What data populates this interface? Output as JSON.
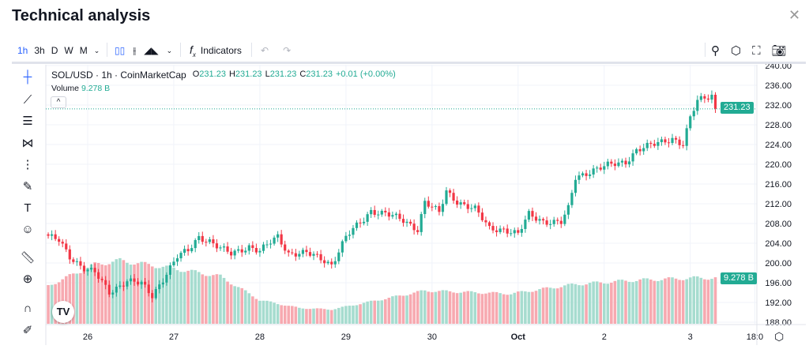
{
  "title": "Technical analysis",
  "toolbar": {
    "intervals": [
      "1h",
      "3h",
      "D",
      "W",
      "M"
    ],
    "active_interval": "1h",
    "indicators": "Indicators"
  },
  "legend": {
    "symbol": "SOL/USD · 1h · CoinMarketCap",
    "o_label": "O",
    "o": "231.23",
    "h_label": "H",
    "h": "231.23",
    "l_label": "L",
    "l": "231.23",
    "c_label": "C",
    "c": "231.23",
    "change": "+0.01 (+0.00%)",
    "volume_label": "Volume",
    "volume": "9.278 B"
  },
  "logo": "TV",
  "colors": {
    "up": "#22ab94",
    "down": "#f23645",
    "up_vol": "#a6dccf",
    "down_vol": "#f7a9b0",
    "accent": "#2962ff"
  },
  "chart_data": {
    "type": "candlestick",
    "title": "SOL/USD · 1h · CoinMarketCap",
    "price_label": "231.23",
    "volume_label": "9.278 B",
    "ylim": [
      188,
      240
    ],
    "y_ticks": [
      "188.00",
      "192.00",
      "196.00",
      "200.00",
      "204.00",
      "208.00",
      "212.00",
      "216.00",
      "220.00",
      "224.00",
      "228.00",
      "232.00",
      "236.00",
      "240.00"
    ],
    "x_ticks": [
      {
        "label": "26",
        "hour": 0
      },
      {
        "label": "27",
        "hour": 24
      },
      {
        "label": "28",
        "hour": 48
      },
      {
        "label": "29",
        "hour": 72
      },
      {
        "label": "30",
        "hour": 96
      },
      {
        "label": "Oct",
        "hour": 120
      },
      {
        "label": "2",
        "hour": 144
      },
      {
        "label": "3",
        "hour": 168
      },
      {
        "label": "18:0",
        "hour": 186
      }
    ],
    "close_keypoints_hour": [
      -11,
      -8,
      -5,
      -1,
      2,
      6,
      11,
      15,
      18,
      22,
      25,
      28,
      31,
      34,
      37,
      40,
      45,
      48,
      53,
      56,
      61,
      66,
      68,
      72,
      77,
      79,
      83,
      88,
      92,
      94,
      98,
      100,
      103,
      108,
      112,
      116,
      120,
      123,
      127,
      132,
      134,
      136,
      141,
      145,
      150,
      153,
      158,
      163,
      166,
      168,
      170,
      174,
      175
    ],
    "close_keypoints_price": [
      205.3,
      204.5,
      201.3,
      199,
      198,
      194,
      196.5,
      195.7,
      193.3,
      198,
      201.3,
      202.4,
      205.3,
      204.5,
      202.9,
      201.8,
      203.4,
      202.4,
      205.3,
      202,
      202,
      200.5,
      199.7,
      205.3,
      208.8,
      210.6,
      210.1,
      208.5,
      206.9,
      212.5,
      210.1,
      214.4,
      212.5,
      210.9,
      206.9,
      206.9,
      205.8,
      209.8,
      208.5,
      208.2,
      210.9,
      217.3,
      218.9,
      219.7,
      220.5,
      222.9,
      224,
      225.3,
      224,
      229.3,
      232.8,
      234.1,
      231.23
    ],
    "volume_keypoints_hour": [
      -11,
      2,
      9,
      24,
      37,
      48,
      59,
      68,
      81,
      94,
      118,
      136,
      152,
      170,
      175
    ],
    "volume_keypoints_billions": [
      7.7,
      12,
      12.8,
      11.2,
      9.6,
      4.8,
      3.2,
      2.9,
      4.8,
      6.7,
      6.1,
      8,
      8.8,
      9.3,
      9.278
    ]
  }
}
